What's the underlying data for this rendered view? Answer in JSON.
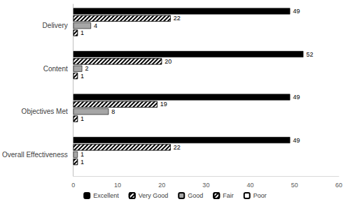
{
  "chart_data": {
    "type": "bar",
    "orientation": "horizontal",
    "categories": [
      "Delivery",
      "Content",
      "Objectives Met",
      "Overall Effectiveness"
    ],
    "series": [
      {
        "name": "Excellent",
        "color": "#000000",
        "values": [
          49,
          52,
          49,
          49
        ]
      },
      {
        "name": "Very Good",
        "color": "#000000",
        "values": [
          22,
          20,
          19,
          22
        ]
      },
      {
        "name": "Good",
        "color": "#a6a6a6",
        "values": [
          4,
          2,
          8,
          1
        ]
      },
      {
        "name": "Fair",
        "color": "#ffffff",
        "values": [
          1,
          1,
          1,
          1
        ]
      },
      {
        "name": "Poor",
        "color": "#ffffff",
        "values": [
          null,
          null,
          null,
          null
        ]
      }
    ],
    "xlim": [
      0,
      60
    ],
    "xticks": [
      0,
      10,
      20,
      30,
      40,
      50,
      60
    ],
    "grid": false,
    "legend": "bottom",
    "data_labels": true
  }
}
